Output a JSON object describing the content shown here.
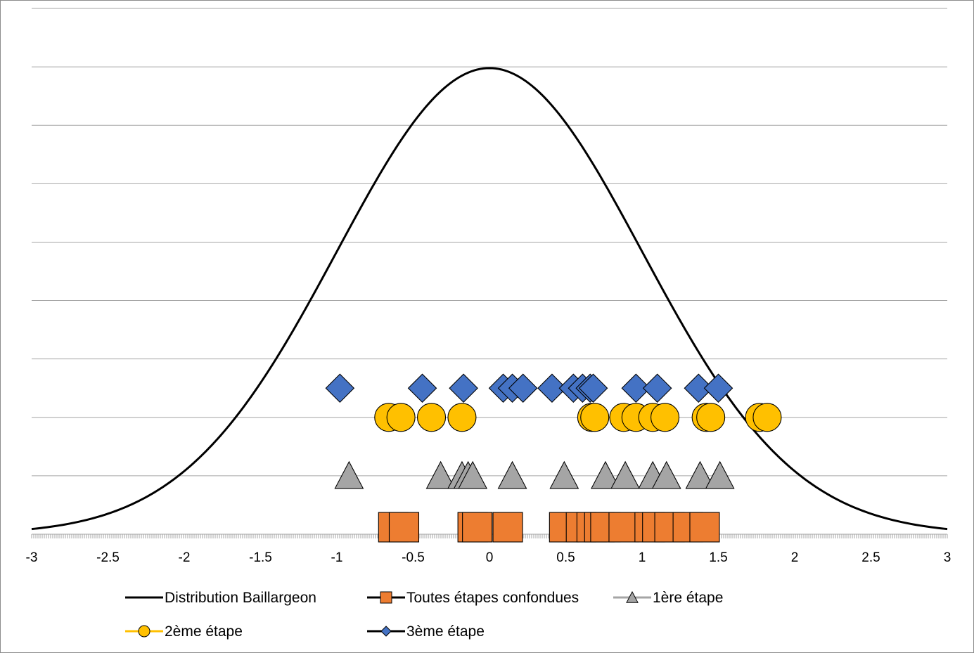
{
  "chart_data": {
    "type": "scatter",
    "title": "",
    "xlabel": "",
    "ylabel": "",
    "xlim": [
      -3,
      3
    ],
    "ylim": [
      0,
      0.45
    ],
    "y_axis_labels": false,
    "grid": "horizontal",
    "x_ticks": [
      "-3",
      "-2.5",
      "-2",
      "-1.5",
      "-1",
      "-0.5",
      "0",
      "0.5",
      "1",
      "1.5",
      "2",
      "2.5",
      "3"
    ],
    "legend_position": "bottom",
    "series": [
      {
        "name": "Distribution Baillargeon",
        "kind": "line",
        "color": "#000000",
        "marker": "none",
        "function": "normal_pdf",
        "mean": 0,
        "sd": 1
      },
      {
        "name": "Toutes étapes confondues",
        "kind": "scatter",
        "marker": "square",
        "color": "#ED7D31",
        "y": 0.005,
        "x": [
          -0.63,
          -0.56,
          -0.11,
          -0.08,
          0.12,
          0.49,
          0.6,
          0.67,
          0.72,
          0.76,
          0.88,
          1.05,
          1.1,
          1.18,
          1.3,
          1.41
        ]
      },
      {
        "name": "1ère étape",
        "kind": "scatter",
        "marker": "triangle",
        "color": "#A5A5A5",
        "y": 0.05,
        "x": [
          -0.92,
          -0.32,
          -0.18,
          -0.14,
          -0.11,
          0.15,
          0.49,
          0.76,
          0.89,
          1.07,
          1.16,
          1.38,
          1.51
        ]
      },
      {
        "name": "2ème étape",
        "kind": "scatter",
        "marker": "circle",
        "color": "#FFC000",
        "y": 0.1,
        "x": [
          -0.66,
          -0.58,
          -0.38,
          -0.18,
          0.67,
          0.69,
          0.88,
          0.96,
          1.07,
          1.15,
          1.42,
          1.45,
          1.77,
          1.82
        ]
      },
      {
        "name": "3ème étape",
        "kind": "scatter",
        "marker": "diamond",
        "color": "#4472C4",
        "y": 0.125,
        "x": [
          -0.98,
          -0.44,
          -0.17,
          0.09,
          0.15,
          0.22,
          0.41,
          0.55,
          0.61,
          0.66,
          0.68,
          0.96,
          1.1,
          1.37,
          1.5
        ]
      }
    ]
  }
}
